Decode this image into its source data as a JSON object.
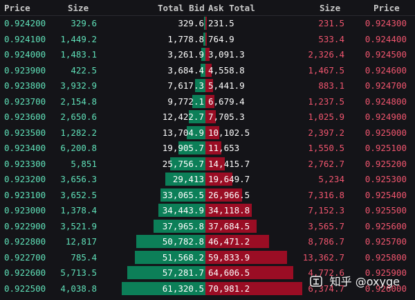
{
  "header": {
    "price_left": "Price",
    "size_left": "Size",
    "total_bid": "Total Bid",
    "ask_total": "Ask Total",
    "size_right": "Size",
    "price_right": "Price"
  },
  "colors": {
    "bid": "#5fe0b8",
    "ask": "#f0556e",
    "bid_bar": "#0c7f58",
    "ask_bar": "#9a0d24"
  },
  "bar_scale_max": 71000,
  "rows": [
    {
      "bid_price": "0.924200",
      "bid_size": "329.6",
      "bid_total": "329.6",
      "ask_total": "231.5",
      "ask_size": "231.5",
      "ask_price": "0.924300",
      "bid_total_value": 329.6,
      "ask_total_value": 231.5
    },
    {
      "bid_price": "0.924100",
      "bid_size": "1,449.2",
      "bid_total": "1,778.8",
      "ask_total": "764.9",
      "ask_size": "533.4",
      "ask_price": "0.924400",
      "bid_total_value": 1778.8,
      "ask_total_value": 764.9
    },
    {
      "bid_price": "0.924000",
      "bid_size": "1,483.1",
      "bid_total": "3,261.9",
      "ask_total": "3,091.3",
      "ask_size": "2,326.4",
      "ask_price": "0.924500",
      "bid_total_value": 3261.9,
      "ask_total_value": 3091.3
    },
    {
      "bid_price": "0.923900",
      "bid_size": "422.5",
      "bid_total": "3,684.4",
      "ask_total": "4,558.8",
      "ask_size": "1,467.5",
      "ask_price": "0.924600",
      "bid_total_value": 3684.4,
      "ask_total_value": 4558.8
    },
    {
      "bid_price": "0.923800",
      "bid_size": "3,932.9",
      "bid_total": "7,617.3",
      "ask_total": "5,441.9",
      "ask_size": "883.1",
      "ask_price": "0.924700",
      "bid_total_value": 7617.3,
      "ask_total_value": 5441.9
    },
    {
      "bid_price": "0.923700",
      "bid_size": "2,154.8",
      "bid_total": "9,772.1",
      "ask_total": "6,679.4",
      "ask_size": "1,237.5",
      "ask_price": "0.924800",
      "bid_total_value": 9772.1,
      "ask_total_value": 6679.4
    },
    {
      "bid_price": "0.923600",
      "bid_size": "2,650.6",
      "bid_total": "12,422.7",
      "ask_total": "7,705.3",
      "ask_size": "1,025.9",
      "ask_price": "0.924900",
      "bid_total_value": 12422.7,
      "ask_total_value": 7705.3
    },
    {
      "bid_price": "0.923500",
      "bid_size": "1,282.2",
      "bid_total": "13,704.9",
      "ask_total": "10,102.5",
      "ask_size": "2,397.2",
      "ask_price": "0.925000",
      "bid_total_value": 13704.9,
      "ask_total_value": 10102.5
    },
    {
      "bid_price": "0.923400",
      "bid_size": "6,200.8",
      "bid_total": "19,905.7",
      "ask_total": "11,653",
      "ask_size": "1,550.5",
      "ask_price": "0.925100",
      "bid_total_value": 19905.7,
      "ask_total_value": 11653
    },
    {
      "bid_price": "0.923300",
      "bid_size": "5,851",
      "bid_total": "25,756.7",
      "ask_total": "14,415.7",
      "ask_size": "2,762.7",
      "ask_price": "0.925200",
      "bid_total_value": 25756.7,
      "ask_total_value": 14415.7
    },
    {
      "bid_price": "0.923200",
      "bid_size": "3,656.3",
      "bid_total": "29,413",
      "ask_total": "19,649.7",
      "ask_size": "5,234",
      "ask_price": "0.925300",
      "bid_total_value": 29413,
      "ask_total_value": 19649.7
    },
    {
      "bid_price": "0.923100",
      "bid_size": "3,652.5",
      "bid_total": "33,065.5",
      "ask_total": "26,966.5",
      "ask_size": "7,316.8",
      "ask_price": "0.925400",
      "bid_total_value": 33065.5,
      "ask_total_value": 26966.5
    },
    {
      "bid_price": "0.923000",
      "bid_size": "1,378.4",
      "bid_total": "34,443.9",
      "ask_total": "34,118.8",
      "ask_size": "7,152.3",
      "ask_price": "0.925500",
      "bid_total_value": 34443.9,
      "ask_total_value": 34118.8
    },
    {
      "bid_price": "0.922900",
      "bid_size": "3,521.9",
      "bid_total": "37,965.8",
      "ask_total": "37,684.5",
      "ask_size": "3,565.7",
      "ask_price": "0.925600",
      "bid_total_value": 37965.8,
      "ask_total_value": 37684.5
    },
    {
      "bid_price": "0.922800",
      "bid_size": "12,817",
      "bid_total": "50,782.8",
      "ask_total": "46,471.2",
      "ask_size": "8,786.7",
      "ask_price": "0.925700",
      "bid_total_value": 50782.8,
      "ask_total_value": 46471.2
    },
    {
      "bid_price": "0.922700",
      "bid_size": "785.4",
      "bid_total": "51,568.2",
      "ask_total": "59,833.9",
      "ask_size": "13,362.7",
      "ask_price": "0.925800",
      "bid_total_value": 51568.2,
      "ask_total_value": 59833.9
    },
    {
      "bid_price": "0.922600",
      "bid_size": "5,713.5",
      "bid_total": "57,281.7",
      "ask_total": "64,606.5",
      "ask_size": "4,772.6",
      "ask_price": "0.925900",
      "bid_total_value": 57281.7,
      "ask_total_value": 64606.5
    },
    {
      "bid_price": "0.922500",
      "bid_size": "4,038.8",
      "bid_total": "61,320.5",
      "ask_total": "70,981.2",
      "ask_size": "6,374.7",
      "ask_price": "0.926000",
      "bid_total_value": 61320.5,
      "ask_total_value": 70981.2
    }
  ],
  "watermark": {
    "text": "知乎 @oxyge",
    "icon": "zhihu-logo-icon"
  }
}
